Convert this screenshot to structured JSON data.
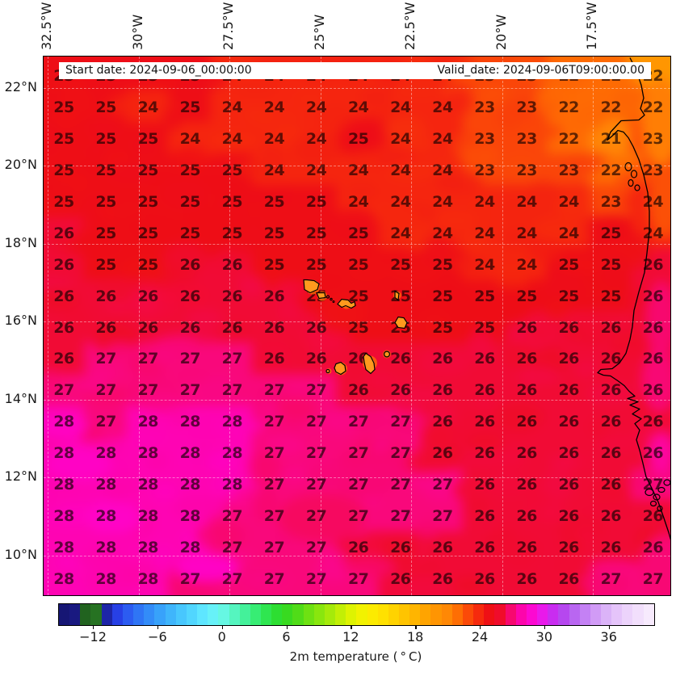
{
  "header": {
    "start_label": "Start date: 2024-09-06_00:00:00",
    "valid_label": "Valid_date: 2024-09-06T09:00:00.00"
  },
  "chart_data": {
    "type": "heatmap",
    "variable": "2m temperature",
    "units": "°C",
    "lon_tick_labels": [
      "32.5°W",
      "30°W",
      "27.5°W",
      "25°W",
      "22.5°W",
      "20°W",
      "17.5°W"
    ],
    "lat_tick_labels": [
      "22°N",
      "20°N",
      "18°N",
      "16°N",
      "14°N",
      "12°N",
      "10°N"
    ],
    "grid_values": [
      [
        25,
        25,
        25,
        25,
        24,
        24,
        24,
        24,
        24,
        24,
        23,
        23,
        22,
        22,
        22
      ],
      [
        25,
        25,
        24,
        25,
        24,
        24,
        24,
        24,
        24,
        24,
        23,
        23,
        22,
        22,
        22
      ],
      [
        25,
        25,
        25,
        24,
        24,
        24,
        24,
        25,
        24,
        24,
        23,
        23,
        22,
        21,
        23
      ],
      [
        25,
        25,
        25,
        25,
        25,
        24,
        24,
        24,
        24,
        24,
        23,
        23,
        23,
        22,
        23
      ],
      [
        25,
        25,
        25,
        25,
        25,
        25,
        25,
        24,
        24,
        24,
        24,
        24,
        24,
        23,
        24
      ],
      [
        26,
        25,
        25,
        25,
        25,
        25,
        25,
        25,
        24,
        24,
        24,
        24,
        24,
        25,
        24
      ],
      [
        26,
        25,
        25,
        26,
        26,
        25,
        25,
        25,
        25,
        25,
        24,
        24,
        25,
        25,
        26
      ],
      [
        26,
        26,
        26,
        26,
        26,
        26,
        25,
        25,
        25,
        25,
        25,
        25,
        25,
        25,
        26
      ],
      [
        26,
        26,
        26,
        26,
        26,
        26,
        26,
        25,
        25,
        25,
        25,
        26,
        26,
        26,
        26
      ],
      [
        26,
        27,
        27,
        27,
        27,
        26,
        26,
        26,
        26,
        26,
        26,
        26,
        26,
        26,
        26
      ],
      [
        27,
        27,
        27,
        27,
        27,
        27,
        27,
        26,
        26,
        26,
        26,
        26,
        26,
        26,
        26
      ],
      [
        28,
        27,
        28,
        28,
        28,
        27,
        27,
        27,
        27,
        26,
        26,
        26,
        26,
        26,
        26
      ],
      [
        28,
        28,
        28,
        28,
        28,
        27,
        27,
        27,
        27,
        26,
        26,
        26,
        26,
        26,
        26
      ],
      [
        28,
        28,
        28,
        28,
        28,
        27,
        27,
        27,
        27,
        27,
        26,
        26,
        26,
        26,
        27
      ],
      [
        28,
        28,
        28,
        28,
        27,
        27,
        27,
        27,
        27,
        27,
        26,
        26,
        26,
        26,
        26
      ],
      [
        28,
        28,
        28,
        28,
        27,
        27,
        27,
        26,
        26,
        26,
        26,
        26,
        26,
        26,
        26
      ],
      [
        28,
        28,
        28,
        27,
        27,
        27,
        27,
        27,
        26,
        26,
        26,
        26,
        26,
        27,
        27
      ]
    ],
    "colorbar": {
      "label": "2m temperature ( ° C)",
      "tick_labels": [
        "−12",
        "−6",
        "0",
        "6",
        "12",
        "18",
        "24",
        "30",
        "36"
      ],
      "tick_values": [
        -12,
        -6,
        0,
        6,
        12,
        18,
        24,
        30,
        36
      ],
      "vmin": -15.3,
      "vmax": 40.2,
      "color_stops": [
        [
          -15.3,
          "#15156e"
        ],
        [
          -13.8,
          "#191980"
        ],
        [
          -13.4,
          "#1e5a1e"
        ],
        [
          -11.8,
          "#267222"
        ],
        [
          -11.4,
          "#181888"
        ],
        [
          -10.6,
          "#1f2ab4"
        ],
        [
          -9.8,
          "#2741e8"
        ],
        [
          -8.8,
          "#2c5ef2"
        ],
        [
          -7.4,
          "#3180f7"
        ],
        [
          -6.0,
          "#37a0fa"
        ],
        [
          -4.5,
          "#42bdfc"
        ],
        [
          -3.0,
          "#50d5fe"
        ],
        [
          -1.5,
          "#63ecff"
        ],
        [
          -0.3,
          "#6cf7f0"
        ],
        [
          0.8,
          "#59f6c8"
        ],
        [
          2.0,
          "#45f19c"
        ],
        [
          3.2,
          "#35ec6e"
        ],
        [
          4.4,
          "#2ce443"
        ],
        [
          5.5,
          "#2eda25"
        ],
        [
          6.6,
          "#44da1a"
        ],
        [
          8.0,
          "#6ee112"
        ],
        [
          9.5,
          "#97e80c"
        ],
        [
          11.0,
          "#c3ef05"
        ],
        [
          12.3,
          "#e8f500"
        ],
        [
          13.5,
          "#fbf000"
        ],
        [
          15.0,
          "#ffe000"
        ],
        [
          16.5,
          "#ffcb00"
        ],
        [
          18.0,
          "#ffb300"
        ],
        [
          19.5,
          "#ff9a00"
        ],
        [
          21.0,
          "#ff8606"
        ],
        [
          22.0,
          "#fe6a04"
        ],
        [
          23.0,
          "#fa4509"
        ],
        [
          23.8,
          "#f62c0d"
        ],
        [
          24.5,
          "#f11513"
        ],
        [
          25.0,
          "#ee0e16"
        ],
        [
          25.6,
          "#ee0d1f"
        ],
        [
          26.1,
          "#f20a3a"
        ],
        [
          26.6,
          "#f60960"
        ],
        [
          27.2,
          "#fa0789"
        ],
        [
          27.8,
          "#fd05aa"
        ],
        [
          28.4,
          "#ff03c4"
        ],
        [
          29.3,
          "#f911e0"
        ],
        [
          30.2,
          "#dc20f2"
        ],
        [
          31.2,
          "#bb34ee"
        ],
        [
          32.2,
          "#b355f0"
        ],
        [
          33.4,
          "#c078f3"
        ],
        [
          34.6,
          "#cf97f6"
        ],
        [
          35.8,
          "#dcb4f8"
        ],
        [
          37.0,
          "#e7c9fa"
        ],
        [
          38.4,
          "#f0dcfc"
        ],
        [
          40.2,
          "#faf0fe"
        ]
      ]
    }
  }
}
